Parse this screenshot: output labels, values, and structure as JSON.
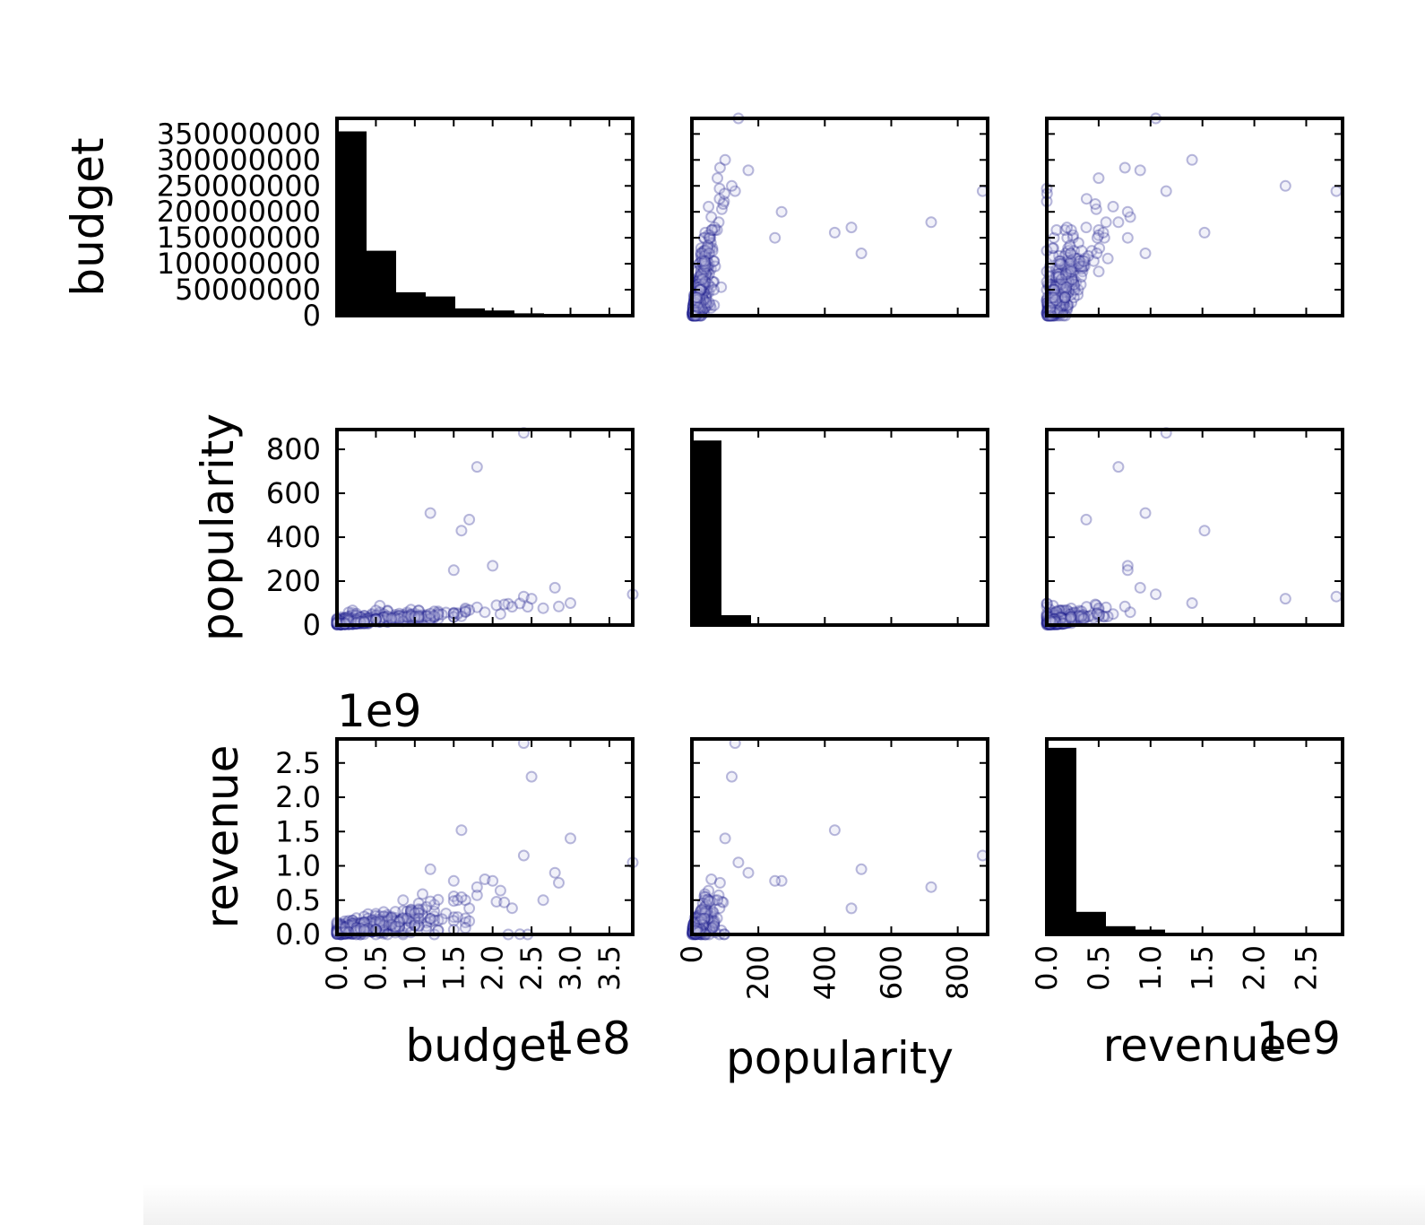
{
  "chart_data": {
    "type": "scatter_matrix",
    "variables": [
      "budget",
      "popularity",
      "revenue"
    ],
    "offset_labels": {
      "budget_x": "1e8",
      "revenue_x": "1e9",
      "revenue_y": "1e9"
    },
    "ranges": {
      "budget": [
        0,
        380000000
      ],
      "popularity": [
        0,
        890
      ],
      "revenue": [
        0,
        2850000000
      ]
    },
    "ticks": {
      "budget_y": [
        0,
        50000000,
        100000000,
        150000000,
        200000000,
        250000000,
        300000000,
        350000000
      ],
      "budget_y_labels": [
        "0",
        "50000000",
        "100000000",
        "150000000",
        "200000000",
        "250000000",
        "300000000",
        "350000000"
      ],
      "budget_x": [
        0,
        50000000,
        100000000,
        150000000,
        200000000,
        250000000,
        300000000,
        350000000
      ],
      "budget_x_labels": [
        "0.0",
        "0.5",
        "1.0",
        "1.5",
        "2.0",
        "2.5",
        "3.0",
        "3.5"
      ],
      "popularity": [
        0,
        200,
        400,
        600,
        800
      ],
      "popularity_labels": [
        "0",
        "200",
        "400",
        "600",
        "800"
      ],
      "revenue": [
        0,
        500000000,
        1000000000,
        1500000000,
        2000000000,
        2500000000
      ],
      "revenue_y_labels": [
        "0.0",
        "0.5",
        "1.0",
        "1.5",
        "2.0",
        "2.5"
      ],
      "revenue_x_labels": [
        "0.0",
        "0.5",
        "1.0",
        "1.5",
        "2.0",
        "2.5"
      ]
    },
    "histograms": {
      "budget": {
        "bin_edges": [
          0,
          38000000,
          76000000,
          114000000,
          152000000,
          190000000,
          228000000,
          266000000,
          304000000,
          342000000,
          380000000
        ],
        "counts": [
          355000000,
          125000000,
          45000000,
          37000000,
          14000000,
          10000000,
          4500000,
          1500000,
          700000,
          500000
        ]
      },
      "popularity": {
        "bin_edges": [
          0,
          89,
          178,
          267,
          356,
          445,
          534,
          623,
          712,
          801,
          890
        ],
        "counts": [
          840,
          45,
          6,
          2,
          2,
          2,
          2,
          1,
          1,
          1
        ]
      },
      "revenue": {
        "bin_edges": [
          0,
          285000000,
          570000000,
          855000000,
          1140000000,
          1425000000,
          1710000000,
          1995000000,
          2280000000,
          2565000000,
          2850000000
        ],
        "counts": [
          2720000000,
          330000000,
          120000000,
          70000000,
          22000000,
          10000000,
          4000000,
          2000000,
          1000000,
          500000
        ]
      }
    },
    "marker": {
      "fill": "#c8c8e8",
      "edge": "#1a1a8c",
      "opacity": 0.25,
      "histogram_fill": "#000000"
    },
    "grid": false,
    "legend": "none"
  }
}
